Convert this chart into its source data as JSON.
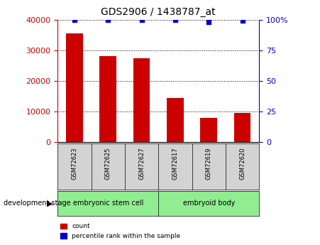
{
  "title": "GDS2906 / 1438787_at",
  "samples": [
    "GSM72623",
    "GSM72625",
    "GSM72627",
    "GSM72617",
    "GSM72619",
    "GSM72620"
  ],
  "counts": [
    35500,
    28000,
    27500,
    14500,
    8000,
    9500
  ],
  "percentiles": [
    100,
    100,
    100,
    100,
    98,
    99
  ],
  "ylim_left": [
    0,
    40000
  ],
  "ylim_right": [
    0,
    100
  ],
  "yticks_left": [
    0,
    10000,
    20000,
    30000,
    40000
  ],
  "yticks_right": [
    0,
    25,
    50,
    75,
    100
  ],
  "bar_color": "#cc0000",
  "dot_color": "#0000cc",
  "group1_label": "embryonic stem cell",
  "group2_label": "embryoid body",
  "group_box_color": "#90ee90",
  "tick_box_color": "#d3d3d3",
  "dev_stage_label": "development stage",
  "legend_count_label": "count",
  "legend_pct_label": "percentile rank within the sample",
  "left_tick_color": "#cc0000",
  "right_tick_color": "#0000cc"
}
